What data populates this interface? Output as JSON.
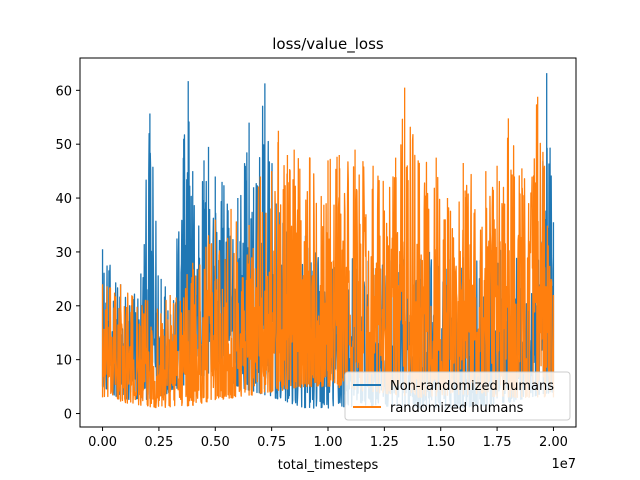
{
  "chart_data": {
    "type": "line",
    "title": "loss/value_loss",
    "xlabel": "total_timesteps",
    "ylabel": "",
    "x_scale_label": "1e7",
    "xlim": [
      -0.1,
      2.1
    ],
    "ylim": [
      -2.5,
      66
    ],
    "x_ticks": [
      0.0,
      0.25,
      0.5,
      0.75,
      1.0,
      1.25,
      1.5,
      1.75,
      2.0
    ],
    "x_tick_labels": [
      "0.00",
      "0.25",
      "0.50",
      "0.75",
      "1.00",
      "1.25",
      "1.50",
      "1.75",
      "2.00"
    ],
    "y_ticks": [
      0,
      10,
      20,
      30,
      40,
      50,
      60
    ],
    "y_tick_labels": [
      "0",
      "10",
      "20",
      "30",
      "40",
      "50",
      "60"
    ],
    "grid": false,
    "legend_position": "lower-right",
    "colors": {
      "series1": "#1f77b4",
      "series2": "#ff7f0e"
    },
    "series": [
      {
        "name": "Non-randomized humans",
        "peaks": [
          [
            0.0,
            30.5
          ],
          [
            0.08,
            24.0
          ],
          [
            0.17,
            26.0
          ],
          [
            0.21,
            55.7
          ],
          [
            0.26,
            25.0
          ],
          [
            0.33,
            32.5
          ],
          [
            0.36,
            51.0
          ],
          [
            0.38,
            61.7
          ],
          [
            0.4,
            45.0
          ],
          [
            0.45,
            47.0
          ],
          [
            0.47,
            49.5
          ],
          [
            0.5,
            44.0
          ],
          [
            0.53,
            43.0
          ],
          [
            0.6,
            40.0
          ],
          [
            0.65,
            54.0
          ],
          [
            0.67,
            42.0
          ],
          [
            0.72,
            61.3
          ],
          [
            0.77,
            39.0
          ],
          [
            0.82,
            34.0
          ],
          [
            0.9,
            33.0
          ],
          [
            0.97,
            29.0
          ],
          [
            1.07,
            30.0
          ],
          [
            1.2,
            28.0
          ],
          [
            1.33,
            29.0
          ],
          [
            1.45,
            30.0
          ],
          [
            1.6,
            29.0
          ],
          [
            1.72,
            31.0
          ],
          [
            1.86,
            30.0
          ],
          [
            1.92,
            33.5
          ],
          [
            1.97,
            63.2
          ],
          [
            2.0,
            35.5
          ]
        ],
        "baseline": [
          [
            0.0,
            5.0
          ],
          [
            0.1,
            2.0
          ],
          [
            0.25,
            3.0
          ],
          [
            0.4,
            6.0
          ],
          [
            0.5,
            8.0
          ],
          [
            0.6,
            5.0
          ],
          [
            0.75,
            3.0
          ],
          [
            0.9,
            1.0
          ],
          [
            1.0,
            1.0
          ],
          [
            1.2,
            1.5
          ],
          [
            1.4,
            1.0
          ],
          [
            1.6,
            1.0
          ],
          [
            1.8,
            2.0
          ],
          [
            2.0,
            4.0
          ]
        ]
      },
      {
        "name": "randomized humans",
        "peaks": [
          [
            0.0,
            24.0
          ],
          [
            0.08,
            24.0
          ],
          [
            0.2,
            21.0
          ],
          [
            0.3,
            22.0
          ],
          [
            0.4,
            28.0
          ],
          [
            0.5,
            36.0
          ],
          [
            0.57,
            38.0
          ],
          [
            0.65,
            35.0
          ],
          [
            0.7,
            44.0
          ],
          [
            0.75,
            45.0
          ],
          [
            0.78,
            52.5
          ],
          [
            0.82,
            48.0
          ],
          [
            0.85,
            49.0
          ],
          [
            0.92,
            47.5
          ],
          [
            1.0,
            47.0
          ],
          [
            1.05,
            48.0
          ],
          [
            1.12,
            49.0
          ],
          [
            1.2,
            46.0
          ],
          [
            1.3,
            47.5
          ],
          [
            1.34,
            60.5
          ],
          [
            1.4,
            47.0
          ],
          [
            1.48,
            47.5
          ],
          [
            1.53,
            40.0
          ],
          [
            1.6,
            46.5
          ],
          [
            1.7,
            45.0
          ],
          [
            1.75,
            46.0
          ],
          [
            1.8,
            54.8
          ],
          [
            1.86,
            45.5
          ],
          [
            1.93,
            58.8
          ],
          [
            1.96,
            46.0
          ],
          [
            2.0,
            22.0
          ]
        ],
        "baseline": [
          [
            0.0,
            3.0
          ],
          [
            0.1,
            2.0
          ],
          [
            0.25,
            1.0
          ],
          [
            0.4,
            1.5
          ],
          [
            0.5,
            2.5
          ],
          [
            0.6,
            3.0
          ],
          [
            0.75,
            4.0
          ],
          [
            0.9,
            5.0
          ],
          [
            1.0,
            5.0
          ],
          [
            1.2,
            4.0
          ],
          [
            1.4,
            3.0
          ],
          [
            1.6,
            3.5
          ],
          [
            1.8,
            3.0
          ],
          [
            2.0,
            3.0
          ]
        ]
      }
    ]
  }
}
